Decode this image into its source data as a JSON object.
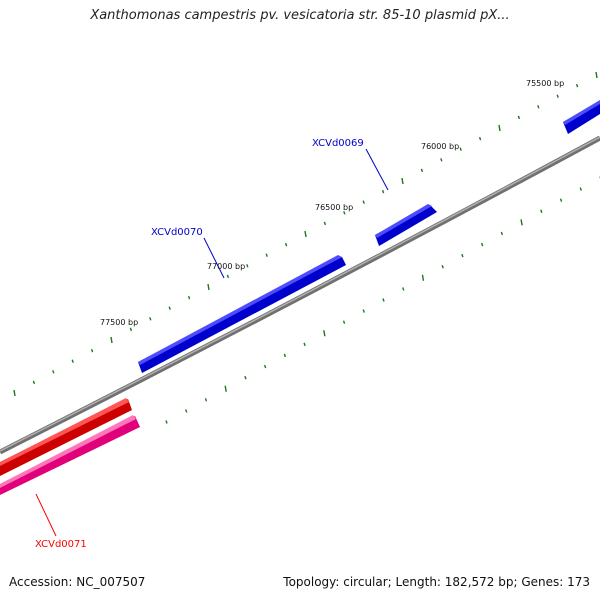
{
  "title": "Xanthomonas campestris pv. vesicatoria str. 85-10 plasmid pX...",
  "footer": {
    "accession": "Accession: NC_007507",
    "summary": "Topology: circular; Length: 182,572 bp; Genes: 173"
  },
  "tick_labels": [
    "75500 bp",
    "76000 bp",
    "76500 bp",
    "77000 bp",
    "77500 bp"
  ],
  "genes": [
    {
      "label": "XCVd0069",
      "color": "#0000cc"
    },
    {
      "label": "XCVd0070",
      "color": "#0000cc"
    },
    {
      "label": "XCVd0071",
      "color": "#ff0000"
    }
  ],
  "colors": {
    "forward_gene": "#1a1aff",
    "reverse_gene_1": "#ee1111",
    "reverse_gene_2": "#ff3399",
    "backbone": "#808080",
    "ticks": "#1a7a1a"
  }
}
